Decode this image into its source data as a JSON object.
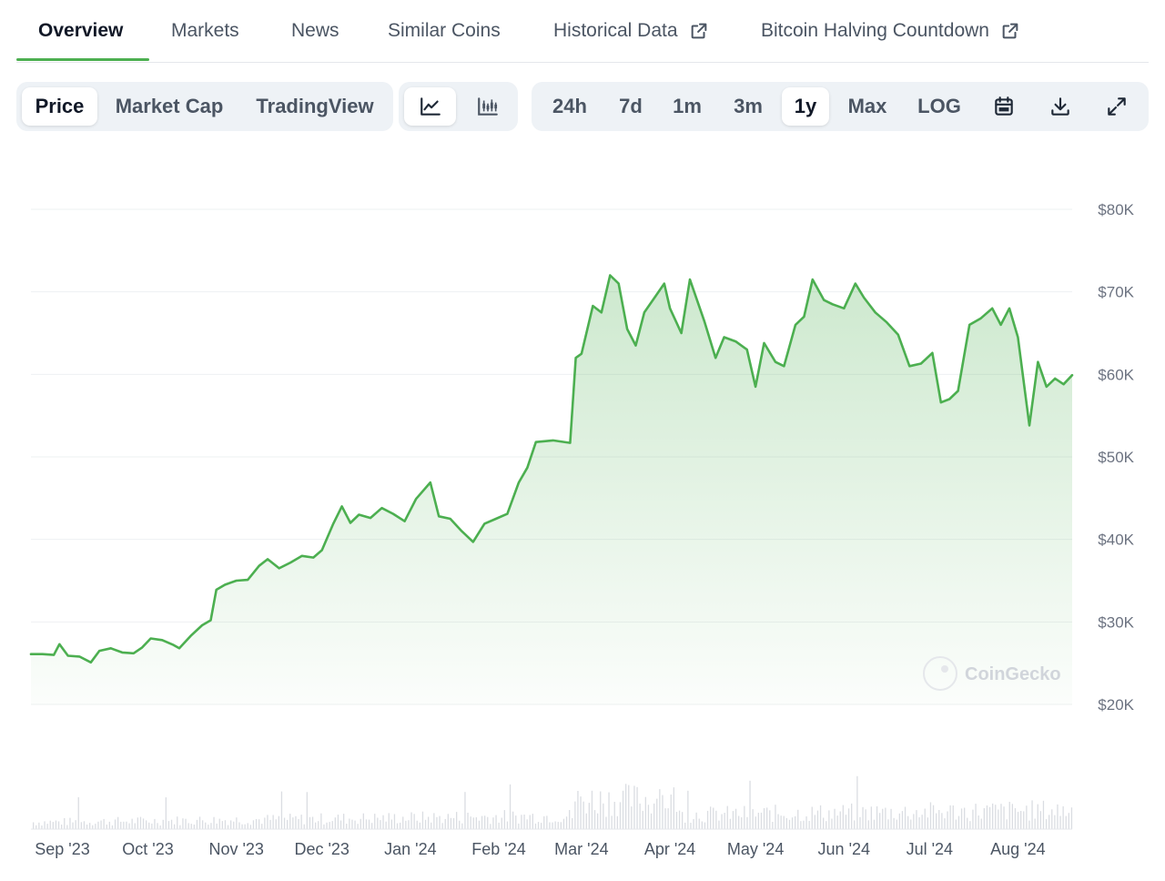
{
  "nav": {
    "tabs": [
      {
        "label": "Overview",
        "active": true
      },
      {
        "label": "Markets"
      },
      {
        "label": "News"
      },
      {
        "label": "Similar Coins"
      },
      {
        "label": "Historical Data",
        "external": true
      },
      {
        "label": "Bitcoin Halving Countdown",
        "external": true
      }
    ]
  },
  "toolbar": {
    "view_options": [
      "Price",
      "Market Cap",
      "TradingView"
    ],
    "view_selected": "Price",
    "chart_type_icons": [
      "line-chart-icon",
      "candlestick-chart-icon"
    ],
    "chart_type_selected": "line-chart-icon",
    "ranges": [
      "24h",
      "7d",
      "1m",
      "3m",
      "1y",
      "Max",
      "LOG"
    ],
    "range_selected": "1y",
    "action_icons": [
      "calendar-icon",
      "download-icon",
      "expand-icon"
    ]
  },
  "watermark": "CoinGecko",
  "colors": {
    "line": "#4caf50",
    "fill": "#4caf50",
    "accent": "#4caf50",
    "grid": "#eef0f2",
    "volume": "#d1d5db"
  },
  "chart_data": {
    "type": "area",
    "xlabel": "",
    "ylabel": "",
    "ylim": [
      20000,
      80000
    ],
    "yticks": [
      20000,
      30000,
      40000,
      50000,
      60000,
      70000,
      80000
    ],
    "ytick_labels": [
      "$20K",
      "$30K",
      "$40K",
      "$50K",
      "$60K",
      "$70K",
      "$80K"
    ],
    "xlim": [
      "2023-08-21",
      "2024-08-20"
    ],
    "xticks": [
      "2023-09-01",
      "2023-10-01",
      "2023-11-01",
      "2023-12-01",
      "2024-01-01",
      "2024-02-01",
      "2024-03-01",
      "2024-04-01",
      "2024-05-01",
      "2024-06-01",
      "2024-07-01",
      "2024-08-01"
    ],
    "xtick_labels": [
      "Sep '23",
      "Oct '23",
      "Nov '23",
      "Dec '23",
      "Jan '24",
      "Feb '24",
      "Mar '24",
      "Apr '24",
      "May '24",
      "Jun '24",
      "Jul '24",
      "Aug '24"
    ],
    "grid": true,
    "series": [
      {
        "x": [
          "2023-08-21",
          "2023-08-25",
          "2023-08-29",
          "2023-08-31",
          "2023-09-03",
          "2023-09-07",
          "2023-09-11",
          "2023-09-14",
          "2023-09-18",
          "2023-09-22",
          "2023-09-26",
          "2023-09-29",
          "2023-10-02",
          "2023-10-06",
          "2023-10-10",
          "2023-10-12",
          "2023-10-16",
          "2023-10-20",
          "2023-10-23",
          "2023-10-25",
          "2023-10-28",
          "2023-11-01",
          "2023-11-05",
          "2023-11-09",
          "2023-11-12",
          "2023-11-16",
          "2023-11-20",
          "2023-11-24",
          "2023-11-28",
          "2023-12-01",
          "2023-12-05",
          "2023-12-08",
          "2023-12-11",
          "2023-12-14",
          "2023-12-18",
          "2023-12-22",
          "2023-12-26",
          "2023-12-30",
          "2024-01-03",
          "2024-01-08",
          "2024-01-11",
          "2024-01-15",
          "2024-01-19",
          "2024-01-23",
          "2024-01-27",
          "2024-01-31",
          "2024-02-04",
          "2024-02-08",
          "2024-02-11",
          "2024-02-14",
          "2024-02-20",
          "2024-02-26",
          "2024-02-28",
          "2024-03-01",
          "2024-03-05",
          "2024-03-08",
          "2024-03-11",
          "2024-03-14",
          "2024-03-17",
          "2024-03-20",
          "2024-03-23",
          "2024-03-27",
          "2024-03-30",
          "2024-04-01",
          "2024-04-05",
          "2024-04-08",
          "2024-04-13",
          "2024-04-17",
          "2024-04-20",
          "2024-04-24",
          "2024-04-28",
          "2024-05-01",
          "2024-05-04",
          "2024-05-08",
          "2024-05-11",
          "2024-05-15",
          "2024-05-18",
          "2024-05-21",
          "2024-05-25",
          "2024-05-28",
          "2024-06-01",
          "2024-06-05",
          "2024-06-08",
          "2024-06-12",
          "2024-06-16",
          "2024-06-20",
          "2024-06-24",
          "2024-06-28",
          "2024-07-02",
          "2024-07-05",
          "2024-07-08",
          "2024-07-11",
          "2024-07-15",
          "2024-07-19",
          "2024-07-23",
          "2024-07-26",
          "2024-07-29",
          "2024-08-01",
          "2024-08-05",
          "2024-08-08",
          "2024-08-11",
          "2024-08-14",
          "2024-08-17",
          "2024-08-20"
        ],
        "y": [
          26100,
          26100,
          26000,
          27300,
          25900,
          25800,
          25100,
          26500,
          26800,
          26300,
          26200,
          26900,
          28000,
          27800,
          27200,
          26800,
          28300,
          29600,
          30200,
          33900,
          34500,
          35000,
          35100,
          36800,
          37600,
          36500,
          37200,
          38000,
          37800,
          38700,
          41900,
          44000,
          42000,
          43000,
          42600,
          43800,
          43100,
          42200,
          44900,
          46900,
          42800,
          42500,
          41000,
          39700,
          41900,
          42500,
          43100,
          46900,
          48700,
          51800,
          52000,
          51700,
          62000,
          62500,
          68300,
          67500,
          72000,
          71000,
          65500,
          63500,
          67500,
          69500,
          71000,
          68000,
          65000,
          71500,
          66500,
          62000,
          64500,
          64000,
          63000,
          58500,
          63800,
          61500,
          61000,
          66000,
          67000,
          71500,
          69000,
          68500,
          68000,
          71000,
          69300,
          67500,
          66300,
          64800,
          61000,
          61300,
          62600,
          56600,
          57000,
          58000,
          66000,
          66800,
          68000,
          66000,
          68000,
          64500,
          53800,
          61500,
          58500,
          59500,
          58800,
          59900
        ]
      }
    ]
  }
}
